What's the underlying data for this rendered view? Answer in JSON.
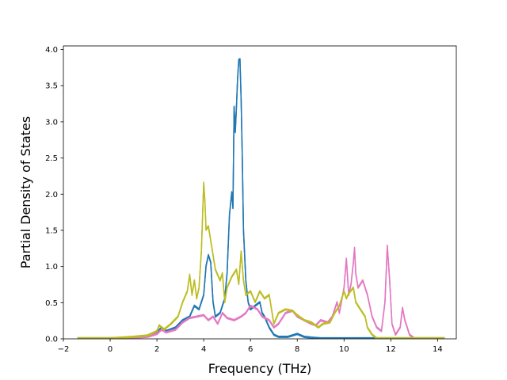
{
  "chart_data": {
    "type": "line",
    "xlabel": "Frequency (THz)",
    "ylabel": "Partial Density of States",
    "xlim": [
      -2.0,
      14.8
    ],
    "ylim": [
      0.0,
      4.05
    ],
    "xticks": [
      -2,
      0,
      2,
      4,
      6,
      8,
      10,
      12,
      14
    ],
    "yticks": [
      0.0,
      0.5,
      1.0,
      1.5,
      2.0,
      2.5,
      3.0,
      3.5,
      4.0
    ],
    "xtick_labels": [
      "−2",
      "0",
      "2",
      "4",
      "6",
      "8",
      "10",
      "12",
      "14"
    ],
    "ytick_labels": [
      "0.0",
      "0.5",
      "1.0",
      "1.5",
      "2.0",
      "2.5",
      "3.0",
      "3.5",
      "4.0"
    ],
    "grid": false,
    "legend": "none",
    "series": [
      {
        "color": "#1f77b4",
        "points": [
          [
            -1.4,
            0
          ],
          [
            0,
            0
          ],
          [
            1.0,
            0.01
          ],
          [
            1.6,
            0.03
          ],
          [
            2.0,
            0.08
          ],
          [
            2.2,
            0.15
          ],
          [
            2.4,
            0.1
          ],
          [
            2.8,
            0.15
          ],
          [
            3.1,
            0.25
          ],
          [
            3.4,
            0.3
          ],
          [
            3.6,
            0.45
          ],
          [
            3.8,
            0.4
          ],
          [
            4.0,
            0.6
          ],
          [
            4.1,
            1.0
          ],
          [
            4.2,
            1.15
          ],
          [
            4.3,
            1.05
          ],
          [
            4.4,
            0.5
          ],
          [
            4.5,
            0.3
          ],
          [
            4.7,
            0.35
          ],
          [
            4.9,
            0.55
          ],
          [
            5.0,
            0.9
          ],
          [
            5.1,
            1.7
          ],
          [
            5.2,
            2.02
          ],
          [
            5.25,
            1.8
          ],
          [
            5.3,
            3.2
          ],
          [
            5.35,
            2.85
          ],
          [
            5.4,
            3.2
          ],
          [
            5.45,
            3.6
          ],
          [
            5.5,
            3.85
          ],
          [
            5.55,
            3.86
          ],
          [
            5.6,
            3.3
          ],
          [
            5.65,
            2.5
          ],
          [
            5.7,
            1.5
          ],
          [
            5.8,
            0.8
          ],
          [
            5.9,
            0.5
          ],
          [
            6.0,
            0.4
          ],
          [
            6.2,
            0.45
          ],
          [
            6.4,
            0.5
          ],
          [
            6.5,
            0.35
          ],
          [
            6.6,
            0.3
          ],
          [
            6.8,
            0.15
          ],
          [
            7.0,
            0.05
          ],
          [
            7.2,
            0.02
          ],
          [
            7.6,
            0.02
          ],
          [
            8.0,
            0.06
          ],
          [
            8.3,
            0.02
          ],
          [
            8.6,
            0.01
          ],
          [
            9.0,
            0
          ],
          [
            11,
            0
          ],
          [
            14.3,
            0
          ]
        ]
      },
      {
        "color": "#e377c2",
        "points": [
          [
            -1.4,
            0
          ],
          [
            0,
            0
          ],
          [
            1.0,
            0.01
          ],
          [
            1.6,
            0.02
          ],
          [
            2.0,
            0.06
          ],
          [
            2.2,
            0.12
          ],
          [
            2.4,
            0.08
          ],
          [
            2.8,
            0.12
          ],
          [
            3.1,
            0.22
          ],
          [
            3.4,
            0.28
          ],
          [
            3.7,
            0.3
          ],
          [
            4.0,
            0.32
          ],
          [
            4.2,
            0.25
          ],
          [
            4.4,
            0.3
          ],
          [
            4.6,
            0.2
          ],
          [
            4.8,
            0.35
          ],
          [
            5.0,
            0.28
          ],
          [
            5.3,
            0.25
          ],
          [
            5.6,
            0.3
          ],
          [
            5.8,
            0.35
          ],
          [
            6.0,
            0.45
          ],
          [
            6.3,
            0.4
          ],
          [
            6.5,
            0.3
          ],
          [
            6.8,
            0.25
          ],
          [
            7.0,
            0.15
          ],
          [
            7.2,
            0.2
          ],
          [
            7.5,
            0.35
          ],
          [
            7.8,
            0.38
          ],
          [
            8.0,
            0.3
          ],
          [
            8.3,
            0.25
          ],
          [
            8.6,
            0.2
          ],
          [
            8.8,
            0.18
          ],
          [
            9.0,
            0.25
          ],
          [
            9.3,
            0.22
          ],
          [
            9.5,
            0.3
          ],
          [
            9.7,
            0.5
          ],
          [
            9.8,
            0.35
          ],
          [
            10.0,
            0.7
          ],
          [
            10.1,
            1.1
          ],
          [
            10.2,
            0.6
          ],
          [
            10.3,
            0.75
          ],
          [
            10.4,
            1.05
          ],
          [
            10.45,
            1.25
          ],
          [
            10.5,
            0.9
          ],
          [
            10.6,
            0.7
          ],
          [
            10.8,
            0.8
          ],
          [
            11.0,
            0.6
          ],
          [
            11.2,
            0.3
          ],
          [
            11.4,
            0.15
          ],
          [
            11.6,
            0.1
          ],
          [
            11.75,
            0.5
          ],
          [
            11.85,
            1.28
          ],
          [
            11.95,
            0.8
          ],
          [
            12.05,
            0.2
          ],
          [
            12.2,
            0.05
          ],
          [
            12.4,
            0.15
          ],
          [
            12.5,
            0.42
          ],
          [
            12.6,
            0.25
          ],
          [
            12.8,
            0.05
          ],
          [
            13.0,
            0
          ],
          [
            14.3,
            0
          ]
        ]
      },
      {
        "color": "#bcbd22",
        "points": [
          [
            -1.4,
            0
          ],
          [
            0,
            0
          ],
          [
            1.0,
            0.02
          ],
          [
            1.6,
            0.04
          ],
          [
            2.0,
            0.1
          ],
          [
            2.1,
            0.18
          ],
          [
            2.3,
            0.12
          ],
          [
            2.6,
            0.2
          ],
          [
            2.9,
            0.3
          ],
          [
            3.1,
            0.5
          ],
          [
            3.3,
            0.65
          ],
          [
            3.4,
            0.88
          ],
          [
            3.5,
            0.6
          ],
          [
            3.6,
            0.8
          ],
          [
            3.7,
            0.55
          ],
          [
            3.8,
            0.7
          ],
          [
            3.9,
            1.2
          ],
          [
            4.0,
            2.15
          ],
          [
            4.05,
            1.9
          ],
          [
            4.1,
            1.5
          ],
          [
            4.2,
            1.55
          ],
          [
            4.3,
            1.35
          ],
          [
            4.5,
            0.95
          ],
          [
            4.7,
            0.8
          ],
          [
            4.8,
            0.9
          ],
          [
            4.9,
            0.5
          ],
          [
            5.0,
            0.7
          ],
          [
            5.2,
            0.85
          ],
          [
            5.4,
            0.95
          ],
          [
            5.5,
            0.75
          ],
          [
            5.6,
            1.2
          ],
          [
            5.7,
            0.8
          ],
          [
            5.8,
            0.6
          ],
          [
            6.0,
            0.65
          ],
          [
            6.2,
            0.5
          ],
          [
            6.4,
            0.65
          ],
          [
            6.6,
            0.55
          ],
          [
            6.8,
            0.6
          ],
          [
            7.0,
            0.2
          ],
          [
            7.2,
            0.35
          ],
          [
            7.5,
            0.4
          ],
          [
            7.8,
            0.38
          ],
          [
            8.0,
            0.32
          ],
          [
            8.3,
            0.25
          ],
          [
            8.6,
            0.22
          ],
          [
            8.9,
            0.15
          ],
          [
            9.1,
            0.2
          ],
          [
            9.4,
            0.22
          ],
          [
            9.6,
            0.35
          ],
          [
            9.8,
            0.45
          ],
          [
            10.0,
            0.65
          ],
          [
            10.1,
            0.55
          ],
          [
            10.2,
            0.62
          ],
          [
            10.4,
            0.7
          ],
          [
            10.5,
            0.5
          ],
          [
            10.7,
            0.4
          ],
          [
            10.9,
            0.3
          ],
          [
            11.0,
            0.15
          ],
          [
            11.2,
            0.05
          ],
          [
            11.4,
            0
          ],
          [
            14.3,
            0
          ]
        ]
      }
    ]
  }
}
